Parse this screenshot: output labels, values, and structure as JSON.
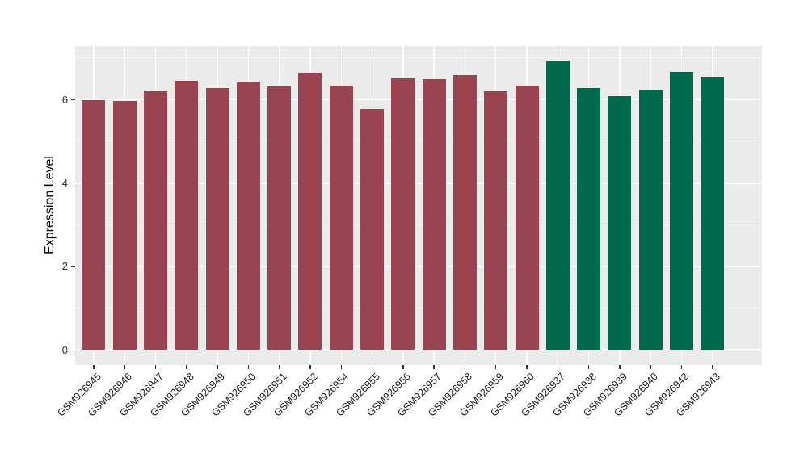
{
  "chart_data": {
    "type": "bar",
    "title": "",
    "xlabel": "",
    "ylabel": "Expression Level",
    "categories": [
      "GSM926945",
      "GSM926946",
      "GSM926947",
      "GSM926948",
      "GSM926949",
      "GSM926950",
      "GSM926951",
      "GSM926952",
      "GSM926954",
      "GSM926955",
      "GSM926956",
      "GSM926957",
      "GSM926958",
      "GSM926959",
      "GSM926960",
      "GSM926937",
      "GSM926938",
      "GSM926939",
      "GSM926940",
      "GSM926942",
      "GSM926943"
    ],
    "values": [
      5.98,
      5.97,
      6.2,
      6.45,
      6.27,
      6.4,
      6.31,
      6.64,
      6.33,
      5.77,
      6.51,
      6.49,
      6.59,
      6.2,
      6.33,
      6.93,
      6.28,
      6.09,
      6.22,
      6.67,
      6.54
    ],
    "bar_colors": [
      "#9B4451",
      "#9B4451",
      "#9B4451",
      "#9B4451",
      "#9B4451",
      "#9B4451",
      "#9B4451",
      "#9B4451",
      "#9B4451",
      "#9B4451",
      "#9B4451",
      "#9B4451",
      "#9B4451",
      "#9B4451",
      "#9B4451",
      "#006B4C",
      "#006B4C",
      "#006B4C",
      "#006B4C",
      "#006B4C",
      "#006B4C"
    ],
    "group_colors": {
      "left_group": "#9B4451",
      "right_group": "#006B4C"
    },
    "yticks": [
      "0",
      "2",
      "4",
      "6"
    ],
    "ytick_values": [
      0,
      2,
      4,
      6
    ],
    "y_minor_tick_values": [
      1,
      3,
      5,
      7
    ],
    "ylim": [
      -0.36,
      7.28
    ],
    "panel_background": "#EBEBEB",
    "gridline_color": "#FFFFFF",
    "legend": "none",
    "x_label_rotation_deg": 45
  }
}
